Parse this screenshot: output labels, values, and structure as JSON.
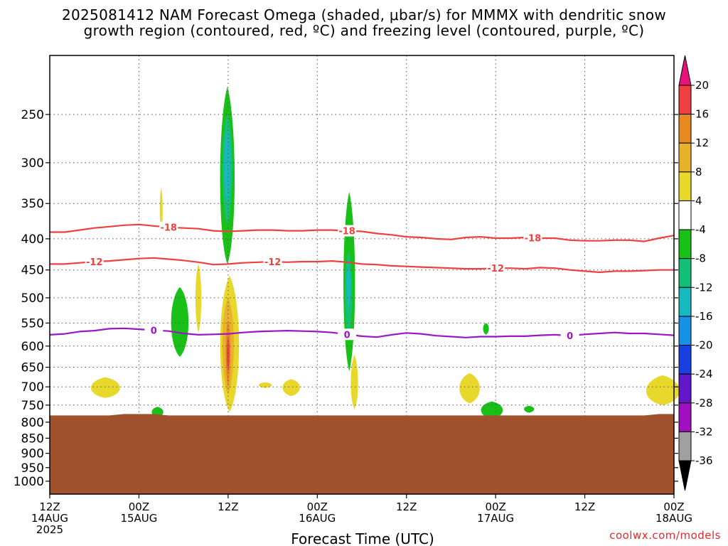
{
  "header": {
    "title_line1": "2025081412 NAM Forecast Omega (shaded, μbar/s) for MMMX with dendritic snow",
    "title_line2": "growth region (contoured, red, ºC) and freezing level (contoured, purple, ºC)"
  },
  "credit": "coolwx.com/models",
  "chart_data": {
    "type": "heatmap",
    "title": "2025081412 NAM Forecast Omega (shaded, μbar/s) for MMMX with dendritic snow growth region (contoured, red, ºC) and freezing level (contoured, purple, ºC)",
    "xlabel": "Forecast Time (UTC)",
    "ylabel": "",
    "x_unit": "hours since 2025-08-14 12Z",
    "xlim": [
      0,
      84
    ],
    "y_scale": "log-pressure (inverted)",
    "ylim": [
      1050,
      200
    ],
    "grid": true,
    "x_ticks": [
      {
        "h": 0,
        "line1": "12Z",
        "line2": "14AUG",
        "line3": "2025"
      },
      {
        "h": 12,
        "line1": "00Z",
        "line2": "15AUG",
        "line3": ""
      },
      {
        "h": 24,
        "line1": "12Z",
        "line2": "",
        "line3": ""
      },
      {
        "h": 36,
        "line1": "00Z",
        "line2": "16AUG",
        "line3": ""
      },
      {
        "h": 48,
        "line1": "12Z",
        "line2": "",
        "line3": ""
      },
      {
        "h": 60,
        "line1": "00Z",
        "line2": "17AUG",
        "line3": ""
      },
      {
        "h": 72,
        "line1": "12Z",
        "line2": "",
        "line3": ""
      },
      {
        "h": 84,
        "line1": "00Z",
        "line2": "18AUG",
        "line3": ""
      }
    ],
    "y_ticks": [
      250,
      300,
      350,
      400,
      450,
      500,
      550,
      600,
      650,
      700,
      750,
      800,
      850,
      900,
      950,
      1000
    ],
    "colorbar": {
      "labels": [
        "20",
        "16",
        "12",
        "8",
        "4",
        "-4",
        "-8",
        "-12",
        "-16",
        "-20",
        "-24",
        "-28",
        "-32",
        "-36"
      ],
      "top_color": "#e8127a",
      "bottom_color": "#000000",
      "colors": [
        "#ee4040",
        "#e88a24",
        "#e8b22c",
        "#e8d82c",
        "#ffffff",
        "#18c018",
        "#14c078",
        "#18b8c0",
        "#1890e8",
        "#1840e0",
        "#6018c8",
        "#a010c0",
        "#a0a0a0"
      ]
    },
    "terrain": {
      "color": "#a0522d",
      "top_pressure": 780
    },
    "contour_series": [
      {
        "label": "-18",
        "color": "#ee4040",
        "x": [
          0,
          2,
          4,
          6,
          8,
          10,
          12,
          14,
          16,
          18,
          20,
          22,
          24,
          26,
          28,
          30,
          32,
          34,
          36,
          38,
          40,
          42,
          44,
          46,
          48,
          50,
          52,
          54,
          56,
          58,
          60,
          62,
          64,
          66,
          68,
          70,
          72,
          74,
          76,
          78,
          80,
          82,
          84
        ],
        "p": [
          390,
          390,
          387,
          384,
          382,
          380,
          379,
          381,
          383,
          384,
          385,
          388,
          389,
          388,
          387,
          387,
          388,
          388,
          387,
          387,
          388,
          389,
          392,
          394,
          397,
          398,
          400,
          401,
          398,
          397,
          399,
          399,
          398,
          399,
          399,
          402,
          403,
          403,
          402,
          402,
          404,
          399,
          395
        ],
        "label_positions": [
          16,
          40,
          65
        ]
      },
      {
        "label": "-12",
        "color": "#ee4040",
        "x": [
          0,
          2,
          4,
          6,
          8,
          10,
          12,
          14,
          16,
          18,
          20,
          22,
          24,
          26,
          28,
          30,
          32,
          34,
          36,
          38,
          40,
          42,
          44,
          46,
          48,
          50,
          52,
          54,
          56,
          58,
          60,
          62,
          64,
          66,
          68,
          70,
          72,
          74,
          76,
          78,
          80,
          82,
          84
        ],
        "p": [
          440,
          440,
          438,
          436,
          435,
          433,
          431,
          430,
          432,
          434,
          437,
          441,
          440,
          438,
          437,
          436,
          437,
          436,
          436,
          435,
          437,
          440,
          441,
          443,
          444,
          445,
          446,
          447,
          448,
          448,
          447,
          447,
          448,
          446,
          447,
          450,
          452,
          454,
          452,
          452,
          451,
          450,
          450
        ],
        "label_positions": [
          6,
          30,
          60
        ]
      },
      {
        "label": "0",
        "color": "#9a16c6",
        "x": [
          0,
          2,
          4,
          6,
          8,
          10,
          12,
          14,
          16,
          18,
          20,
          22,
          24,
          26,
          28,
          30,
          32,
          34,
          36,
          38,
          40,
          42,
          44,
          46,
          48,
          50,
          52,
          54,
          56,
          58,
          60,
          62,
          64,
          66,
          68,
          70,
          72,
          74,
          76,
          78,
          80,
          82,
          84
        ],
        "p": [
          575,
          573,
          568,
          566,
          562,
          561,
          563,
          565,
          567,
          572,
          575,
          574,
          573,
          570,
          568,
          567,
          566,
          567,
          568,
          570,
          574,
          578,
          580,
          575,
          571,
          573,
          577,
          579,
          581,
          579,
          579,
          578,
          578,
          576,
          575,
          577,
          574,
          572,
          570,
          572,
          572,
          574,
          576
        ],
        "label_positions": [
          14,
          40,
          70
        ]
      }
    ],
    "shaded_regions": [
      {
        "value_range": [
          -12,
          -4
        ],
        "color": "#18c018",
        "center_x": 23.9,
        "center_p": 330,
        "half_width": 1.0,
        "p_top": 225,
        "p_bottom": 440
      },
      {
        "value_range": [
          -16,
          -8
        ],
        "color": "#14c078",
        "center_x": 23.9,
        "center_p": 300,
        "half_width": 0.7,
        "p_top": 250,
        "p_bottom": 380
      },
      {
        "value_range": [
          -16,
          -12
        ],
        "color": "#18b8c0",
        "center_x": 23.9,
        "center_p": 300,
        "half_width": 0.4,
        "p_top": 265,
        "p_bottom": 350
      },
      {
        "value_range": [
          -8,
          -4
        ],
        "color": "#18c018",
        "center_x": 17.5,
        "center_p": 550,
        "half_width": 1.2,
        "p_top": 480,
        "p_bottom": 625
      },
      {
        "value_range": [
          -8,
          -4
        ],
        "color": "#18c018",
        "center_x": 40.3,
        "center_p": 480,
        "half_width": 0.8,
        "p_top": 335,
        "p_bottom": 660
      },
      {
        "value_range": [
          -12,
          -8
        ],
        "color": "#14c078",
        "center_x": 40.2,
        "center_p": 480,
        "half_width": 0.5,
        "p_top": 420,
        "p_bottom": 580
      },
      {
        "value_range": [
          -12,
          -8
        ],
        "color": "#18b8c0",
        "center_x": 40.2,
        "center_p": 470,
        "half_width": 0.25,
        "p_top": 440,
        "p_bottom": 520
      },
      {
        "value_range": [
          4,
          8
        ],
        "color": "#e8d82c",
        "center_x": 24.2,
        "center_p": 600,
        "half_width": 1.3,
        "p_top": 460,
        "p_bottom": 770
      },
      {
        "value_range": [
          8,
          12
        ],
        "color": "#e8b22c",
        "center_x": 24.0,
        "center_p": 590,
        "half_width": 0.8,
        "p_top": 500,
        "p_bottom": 720
      },
      {
        "value_range": [
          12,
          16
        ],
        "color": "#e88a24",
        "center_x": 24.0,
        "center_p": 600,
        "half_width": 0.35,
        "p_top": 545,
        "p_bottom": 700
      },
      {
        "value_range": [
          16,
          20
        ],
        "color": "#ee4040",
        "center_x": 24.0,
        "center_p": 620,
        "half_width": 0.15,
        "p_top": 580,
        "p_bottom": 660
      },
      {
        "value_range": [
          4,
          8
        ],
        "color": "#e8d82c",
        "center_x": 20.0,
        "center_p": 500,
        "half_width": 0.4,
        "p_top": 440,
        "p_bottom": 570
      },
      {
        "value_range": [
          4,
          8
        ],
        "color": "#e8d82c",
        "center_x": 15.0,
        "center_p": 360,
        "half_width": 0.2,
        "p_top": 330,
        "p_bottom": 390
      },
      {
        "value_range": [
          4,
          8
        ],
        "color": "#e8d82c",
        "center_x": 41.0,
        "center_p": 700,
        "half_width": 0.5,
        "p_top": 620,
        "p_bottom": 760
      },
      {
        "value_range": [
          4,
          8
        ],
        "color": "#e8d82c",
        "center_x": 7.5,
        "center_p": 705,
        "half_width": 2.0,
        "p_top": 675,
        "p_bottom": 730
      },
      {
        "value_range": [
          4,
          8
        ],
        "color": "#e8d82c",
        "center_x": 32.5,
        "center_p": 700,
        "half_width": 1.2,
        "p_top": 680,
        "p_bottom": 725
      },
      {
        "value_range": [
          4,
          8
        ],
        "color": "#e8d82c",
        "center_x": 29.0,
        "center_p": 695,
        "half_width": 0.9,
        "p_top": 688,
        "p_bottom": 703
      },
      {
        "value_range": [
          4,
          8
        ],
        "color": "#e8d82c",
        "center_x": 56.5,
        "center_p": 705,
        "half_width": 1.4,
        "p_top": 665,
        "p_bottom": 745
      },
      {
        "value_range": [
          4,
          8
        ],
        "color": "#e8d82c",
        "center_x": 82.5,
        "center_p": 715,
        "half_width": 2.3,
        "p_top": 670,
        "p_bottom": 750
      },
      {
        "value_range": [
          -8,
          -4
        ],
        "color": "#18c018",
        "center_x": 14.5,
        "center_p": 770,
        "half_width": 0.8,
        "p_top": 755,
        "p_bottom": 785
      },
      {
        "value_range": [
          -8,
          -4
        ],
        "color": "#18c018",
        "center_x": 59.5,
        "center_p": 765,
        "half_width": 1.5,
        "p_top": 740,
        "p_bottom": 790
      },
      {
        "value_range": [
          -8,
          -4
        ],
        "color": "#18c018",
        "center_x": 64.5,
        "center_p": 760,
        "half_width": 0.7,
        "p_top": 752,
        "p_bottom": 772
      },
      {
        "value_range": [
          -8,
          -4
        ],
        "color": "#18c018",
        "center_x": 58.7,
        "center_p": 560,
        "half_width": 0.4,
        "p_top": 550,
        "p_bottom": 575
      }
    ]
  }
}
